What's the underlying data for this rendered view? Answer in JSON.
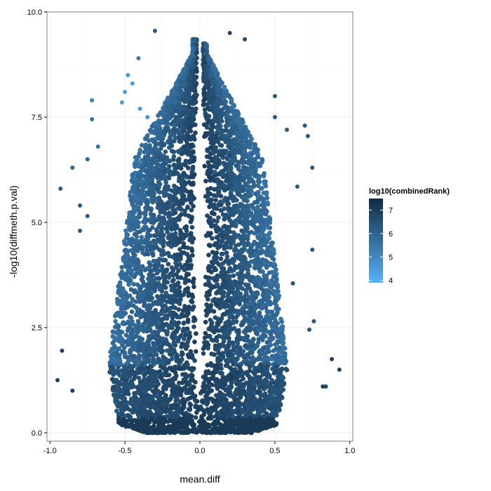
{
  "chart_data": {
    "type": "scatter",
    "title": "",
    "xlabel": "mean.diff",
    "ylabel": "-log10(diffmeth.p.val)",
    "xlim": [
      -1.02,
      1.02
    ],
    "ylim": [
      -0.2,
      10.0
    ],
    "x_ticks": [
      {
        "value": -1.0,
        "label": "-1.0"
      },
      {
        "value": -0.5,
        "label": "-0.5"
      },
      {
        "value": 0.0,
        "label": "0.0"
      },
      {
        "value": 0.5,
        "label": "0.5"
      },
      {
        "value": 1.0,
        "label": "1.0"
      }
    ],
    "y_ticks": [
      {
        "value": 0.0,
        "label": "0.0"
      },
      {
        "value": 2.5,
        "label": "2.5"
      },
      {
        "value": 5.0,
        "label": "5.0"
      },
      {
        "value": 7.5,
        "label": "7.5"
      },
      {
        "value": 10.0,
        "label": "10.0"
      }
    ],
    "grid": true,
    "color_scale": {
      "title": "log10(combinedRank)",
      "range": [
        3.9,
        7.5
      ],
      "ticks": [
        {
          "value": 4,
          "label": "4"
        },
        {
          "value": 5,
          "label": "5"
        },
        {
          "value": 6,
          "label": "6"
        },
        {
          "value": 7,
          "label": "7"
        }
      ],
      "low_color": "#56b1f7",
      "high_color": "#132b43"
    },
    "legend_position": "right",
    "points": [
      {
        "x": -0.3,
        "y": 9.55,
        "c": 6.3
      },
      {
        "x": 0.2,
        "y": 9.5,
        "c": 6.8
      },
      {
        "x": 0.3,
        "y": 9.35,
        "c": 6.8
      },
      {
        "x": -0.41,
        "y": 8.9,
        "c": 5.4
      },
      {
        "x": -0.48,
        "y": 8.5,
        "c": 4.6
      },
      {
        "x": -0.45,
        "y": 8.3,
        "c": 4.4
      },
      {
        "x": -0.5,
        "y": 8.1,
        "c": 4.4
      },
      {
        "x": -0.52,
        "y": 7.85,
        "c": 4.5
      },
      {
        "x": -0.72,
        "y": 7.9,
        "c": 5.2
      },
      {
        "x": -0.4,
        "y": 7.7,
        "c": 4.5
      },
      {
        "x": -0.35,
        "y": 7.5,
        "c": 4.7
      },
      {
        "x": 0.5,
        "y": 8.0,
        "c": 6.3
      },
      {
        "x": 0.5,
        "y": 7.5,
        "c": 6.3
      },
      {
        "x": 0.58,
        "y": 7.2,
        "c": 6.3
      },
      {
        "x": 0.7,
        "y": 7.3,
        "c": 6.3
      },
      {
        "x": 0.72,
        "y": 7.05,
        "c": 6.3
      },
      {
        "x": 0.75,
        "y": 6.3,
        "c": 6.3
      },
      {
        "x": 0.65,
        "y": 5.85,
        "c": 6.3
      },
      {
        "x": -0.72,
        "y": 7.45,
        "c": 5.6
      },
      {
        "x": -0.68,
        "y": 6.8,
        "c": 5.6
      },
      {
        "x": -0.75,
        "y": 6.5,
        "c": 6.0
      },
      {
        "x": -0.85,
        "y": 6.3,
        "c": 6.0
      },
      {
        "x": -0.93,
        "y": 5.8,
        "c": 6.2
      },
      {
        "x": -0.8,
        "y": 5.4,
        "c": 6.2
      },
      {
        "x": -0.75,
        "y": 5.15,
        "c": 6.2
      },
      {
        "x": -0.8,
        "y": 4.8,
        "c": 6.2
      },
      {
        "x": 0.75,
        "y": 4.35,
        "c": 6.4
      },
      {
        "x": 0.62,
        "y": 3.55,
        "c": 6.4
      },
      {
        "x": 0.76,
        "y": 2.65,
        "c": 6.4
      },
      {
        "x": 0.73,
        "y": 2.45,
        "c": 6.4
      },
      {
        "x": -0.92,
        "y": 1.95,
        "c": 6.9
      },
      {
        "x": -0.95,
        "y": 1.25,
        "c": 6.9
      },
      {
        "x": -0.85,
        "y": 1.0,
        "c": 6.9
      },
      {
        "x": 0.93,
        "y": 1.5,
        "c": 6.9
      },
      {
        "x": 0.88,
        "y": 1.75,
        "c": 6.9
      },
      {
        "x": 0.82,
        "y": 1.1,
        "c": 6.9
      },
      {
        "x": 0.84,
        "y": 1.1,
        "c": 6.9
      },
      {
        "x": 0.1,
        "y": 6.2,
        "c": 6.2
      },
      {
        "x": 0.15,
        "y": 5.5,
        "c": 6.1
      },
      {
        "x": -0.27,
        "y": 2.6,
        "c": 6.0
      }
    ]
  }
}
